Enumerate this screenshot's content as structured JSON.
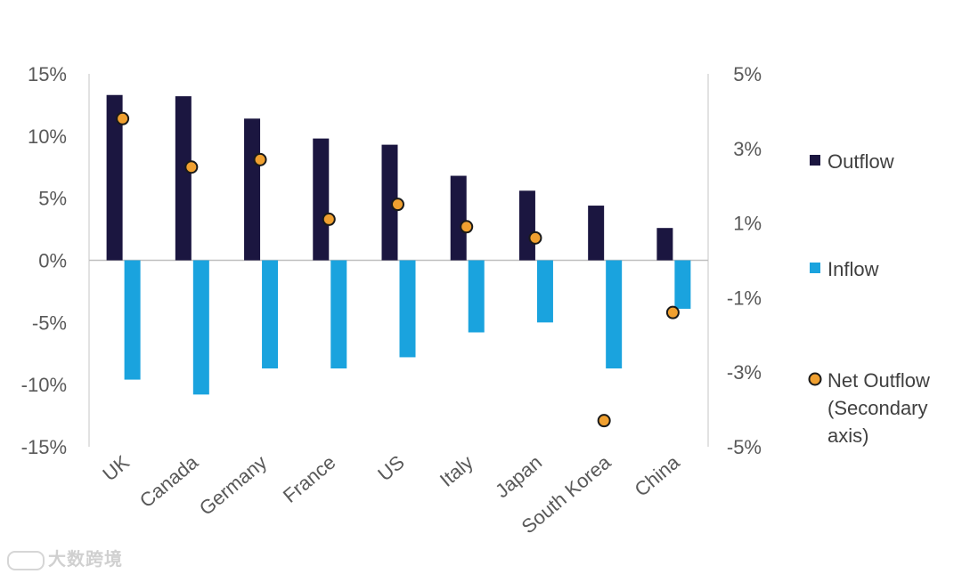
{
  "chart_data": {
    "type": "bar",
    "categories": [
      "UK",
      "Canada",
      "Germany",
      "France",
      "US",
      "Italy",
      "Japan",
      "South Korea",
      "China"
    ],
    "series": [
      {
        "name": "Outflow",
        "axis": "primary",
        "color": "#1b1640",
        "values": [
          13.3,
          13.2,
          11.4,
          9.8,
          9.3,
          6.8,
          5.6,
          4.4,
          2.6
        ]
      },
      {
        "name": "Inflow",
        "axis": "primary",
        "color": "#1aa3de",
        "values": [
          -9.6,
          -10.8,
          -8.7,
          -8.7,
          -7.8,
          -5.8,
          -5.0,
          -8.7,
          -3.9
        ]
      },
      {
        "name": "Net Outflow (Secondary axis)",
        "axis": "secondary",
        "type": "scatter",
        "color": "#f0a030",
        "values": [
          3.8,
          2.5,
          2.7,
          1.1,
          1.5,
          0.9,
          0.6,
          -4.3,
          -1.4
        ]
      }
    ],
    "primary_axis": {
      "ylim": [
        -15,
        15
      ],
      "ticks": [
        15,
        10,
        5,
        0,
        -5,
        -10,
        -15
      ],
      "tick_labels": [
        "15%",
        "10%",
        "5%",
        "0%",
        "-5%",
        "-10%",
        "-15%"
      ]
    },
    "secondary_axis": {
      "ylim": [
        -5,
        5
      ],
      "ticks": [
        5,
        3,
        1,
        -1,
        -3,
        -5
      ],
      "tick_labels": [
        "5%",
        "3%",
        "1%",
        "-1%",
        "-3%",
        "-5%"
      ]
    },
    "legend": {
      "position": "right",
      "items": [
        {
          "lines": [
            "Outflow"
          ],
          "marker": "square-dark"
        },
        {
          "lines": [
            "Inflow"
          ],
          "marker": "square-light"
        },
        {
          "lines": [
            "Net Outflow",
            "(Secondary",
            "axis)"
          ],
          "marker": "circle"
        }
      ]
    },
    "title": "",
    "xlabel": "",
    "ylabel": ""
  },
  "watermark": {
    "text": "大数跨境"
  }
}
